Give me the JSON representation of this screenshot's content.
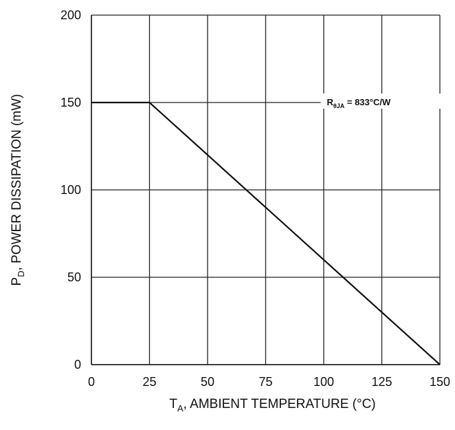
{
  "chart_data": {
    "type": "line",
    "xlabel": {
      "main": "T",
      "sub": "A",
      "rest": ", AMBIENT TEMPERATURE (°C)"
    },
    "ylabel": {
      "main": "P",
      "sub": "D",
      "rest": ", POWER DISSIPATION (mW)"
    },
    "xlim": [
      0,
      150
    ],
    "ylim": [
      0,
      200
    ],
    "x_ticks": [
      "0",
      "25",
      "50",
      "75",
      "100",
      "125",
      "150"
    ],
    "y_ticks": [
      "0",
      "50",
      "100",
      "150",
      "200"
    ],
    "grid": true,
    "series": [
      {
        "x": [
          0,
          25,
          150
        ],
        "y": [
          150,
          150,
          0
        ]
      }
    ],
    "annotation": {
      "main": "R",
      "sub": "θJA",
      "rest": " = 833°C/W",
      "x": 125,
      "y": 150
    }
  }
}
